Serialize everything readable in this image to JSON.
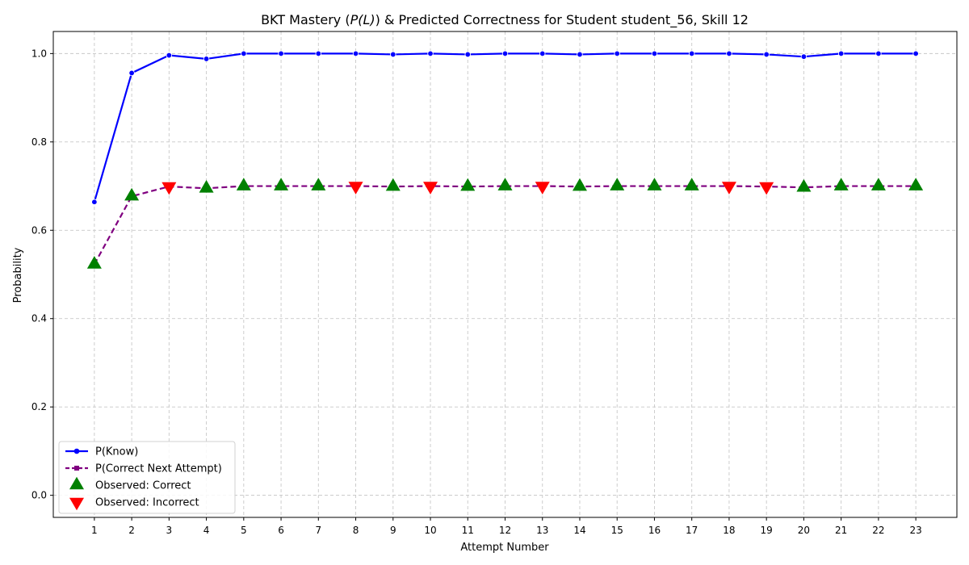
{
  "chart_data": {
    "type": "line",
    "title_prefix": "BKT Mastery (",
    "title_math": "P(L)",
    "title_suffix": ") & Predicted Correctness for Student student_56, Skill 12",
    "xlabel": "Attempt Number",
    "ylabel": "Probability",
    "x": [
      1,
      2,
      3,
      4,
      5,
      6,
      7,
      8,
      9,
      10,
      11,
      12,
      13,
      14,
      15,
      16,
      17,
      18,
      19,
      20,
      21,
      22,
      23
    ],
    "xlim": [
      -0.1,
      24.1
    ],
    "ylim": [
      -0.05,
      1.05
    ],
    "yticks": [
      0.0,
      0.2,
      0.4,
      0.6,
      0.8,
      1.0
    ],
    "ytick_labels": [
      "0.0",
      "0.2",
      "0.4",
      "0.6",
      "0.8",
      "1.0"
    ],
    "grid": true,
    "legend_position": "lower-left",
    "series": [
      {
        "name": "P(Know)",
        "color": "#0000ff",
        "marker": "circle",
        "line_style": "solid",
        "values": [
          0.664,
          0.956,
          0.996,
          0.988,
          1.0,
          1.0,
          1.0,
          1.0,
          0.998,
          1.0,
          0.998,
          1.0,
          1.0,
          0.998,
          1.0,
          1.0,
          1.0,
          1.0,
          0.998,
          0.993,
          1.0,
          1.0,
          1.0
        ]
      },
      {
        "name": "P(Correct Next Attempt)",
        "color": "#800080",
        "marker": "square",
        "line_style": "dashed",
        "values": [
          0.523,
          0.677,
          0.699,
          0.695,
          0.7,
          0.7,
          0.7,
          0.7,
          0.699,
          0.7,
          0.699,
          0.7,
          0.7,
          0.699,
          0.7,
          0.7,
          0.7,
          0.7,
          0.699,
          0.697,
          0.7,
          0.7,
          0.7
        ]
      }
    ],
    "observations": [
      {
        "name": "Observed: Correct",
        "color": "#008000",
        "marker": "triangle-up",
        "x": [
          1,
          2,
          4,
          5,
          6,
          7,
          9,
          11,
          12,
          14,
          15,
          16,
          17,
          20,
          21,
          22,
          23
        ],
        "y": [
          0.523,
          0.677,
          0.695,
          0.7,
          0.7,
          0.7,
          0.699,
          0.699,
          0.7,
          0.699,
          0.7,
          0.7,
          0.7,
          0.697,
          0.7,
          0.7,
          0.7
        ]
      },
      {
        "name": "Observed: Incorrect",
        "color": "#ff0000",
        "marker": "triangle-down",
        "x": [
          3,
          8,
          10,
          13,
          18,
          19
        ],
        "y": [
          0.699,
          0.7,
          0.7,
          0.7,
          0.7,
          0.699
        ]
      }
    ]
  }
}
